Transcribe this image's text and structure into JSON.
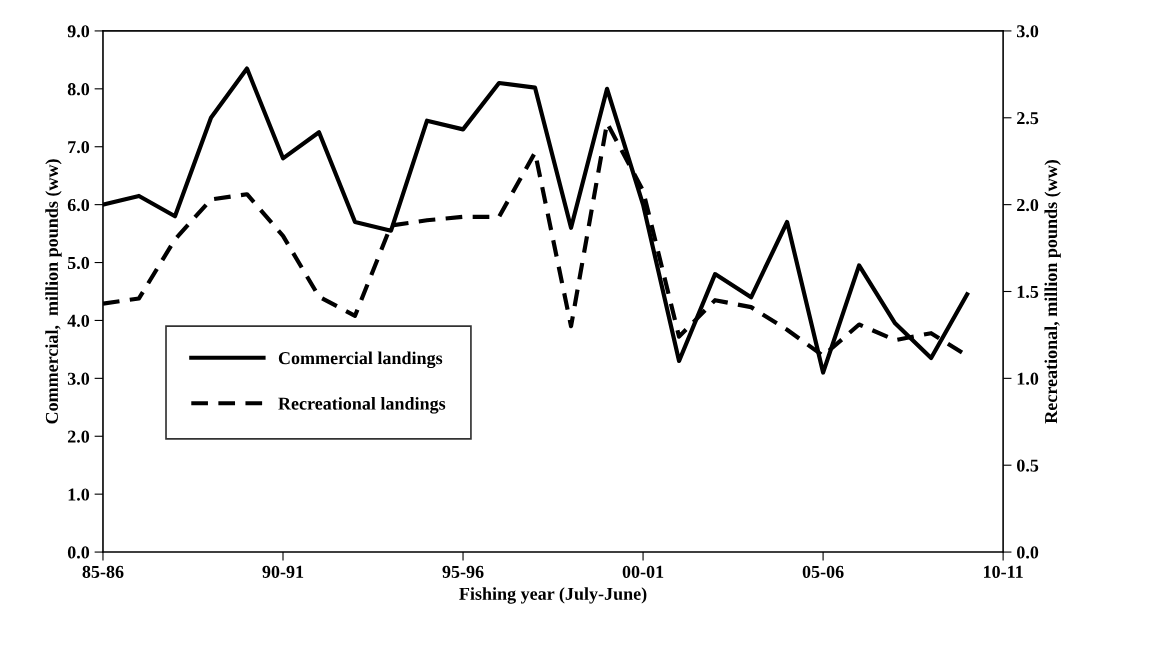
{
  "chart_data": {
    "type": "line",
    "xlabel": "Fishing year (July-June)",
    "ylabel": "Commercial,  million pounds (ww)",
    "y2label": "Recreational, million pounds (ww)",
    "categories": [
      "85-86",
      null,
      null,
      null,
      null,
      "90-91",
      null,
      null,
      null,
      null,
      "95-96",
      null,
      null,
      null,
      null,
      "00-01",
      null,
      null,
      null,
      null,
      "05-06",
      null,
      null,
      null,
      null,
      "10-11"
    ],
    "series": [
      {
        "name": "Commercial landings",
        "color": "#000000",
        "line_style": "solid",
        "values": [
          6.0,
          6.15,
          5.8,
          7.5,
          8.35,
          6.8,
          7.25,
          5.7,
          5.55,
          7.45,
          7.3,
          8.1,
          8.02,
          5.6,
          8.0,
          6.0,
          3.3,
          4.8,
          4.4,
          5.7,
          3.1,
          4.95,
          3.95,
          3.35,
          4.45,
          null
        ]
      },
      {
        "name": "Recreational landings",
        "color": "#000000",
        "line_style": "dashed",
        "axis": "y2",
        "values": [
          1.43,
          1.46,
          1.8,
          2.03,
          2.06,
          1.82,
          1.47,
          1.36,
          1.88,
          1.91,
          1.93,
          1.93,
          2.3,
          1.3,
          2.47,
          2.08,
          1.24,
          1.45,
          1.41,
          1.28,
          1.13,
          1.31,
          1.22,
          1.26,
          1.13,
          null
        ]
      }
    ],
    "ylim": [
      0,
      9
    ],
    "yticks": [
      {
        "value": 0,
        "label": "0.0"
      },
      {
        "value": 1,
        "label": "1.0"
      },
      {
        "value": 2,
        "label": "2.0"
      },
      {
        "value": 3,
        "label": "3.0"
      },
      {
        "value": 4,
        "label": "4.0"
      },
      {
        "value": 5,
        "label": "5.0"
      },
      {
        "value": 6,
        "label": "6.0"
      },
      {
        "value": 7,
        "label": "7.0"
      },
      {
        "value": 8,
        "label": "8.0"
      },
      {
        "value": 9,
        "label": "9.0"
      }
    ],
    "y2lim": [
      0,
      3
    ],
    "y2ticks": [
      {
        "value": 0,
        "label": "0.0"
      },
      {
        "value": 0.5,
        "label": "0.5"
      },
      {
        "value": 1,
        "label": "1.0"
      },
      {
        "value": 1.5,
        "label": "1.5"
      },
      {
        "value": 2,
        "label": "2.0"
      },
      {
        "value": 2.5,
        "label": "2.5"
      },
      {
        "value": 3,
        "label": "3.0"
      }
    ],
    "grid": false,
    "legend": "bottom left",
    "marker": "none"
  }
}
